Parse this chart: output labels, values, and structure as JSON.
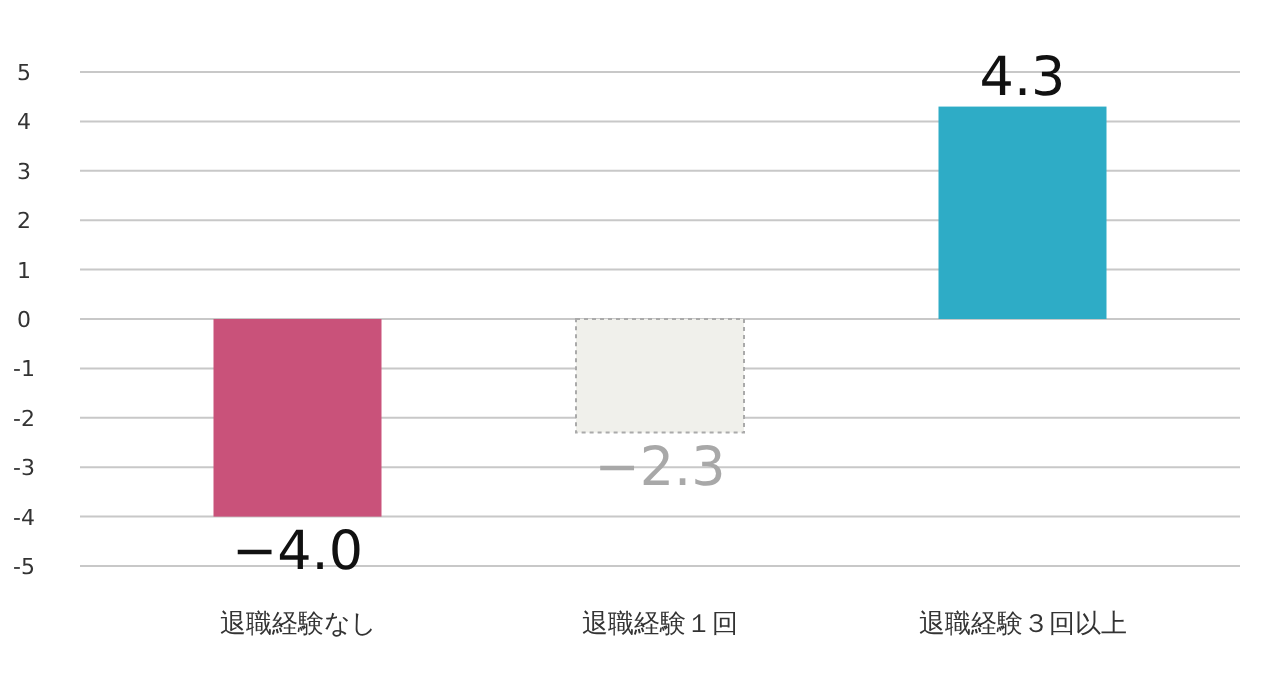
{
  "chart_data": {
    "type": "bar",
    "categories": [
      "退職経験なし",
      "退職経験１回",
      "退職経験３回以上"
    ],
    "values": [
      -4.0,
      -2.3,
      4.3
    ],
    "colors": [
      "#c9527a",
      "#f0f0eb",
      "#2eacc6"
    ],
    "value_labels": [
      "−4.0",
      "−2.3",
      "4.3"
    ],
    "ylim": [
      -5,
      5
    ],
    "yticks": [
      -5,
      -4,
      -3,
      -2,
      -1,
      0,
      1,
      2,
      3,
      4,
      5
    ],
    "grid": "y"
  }
}
